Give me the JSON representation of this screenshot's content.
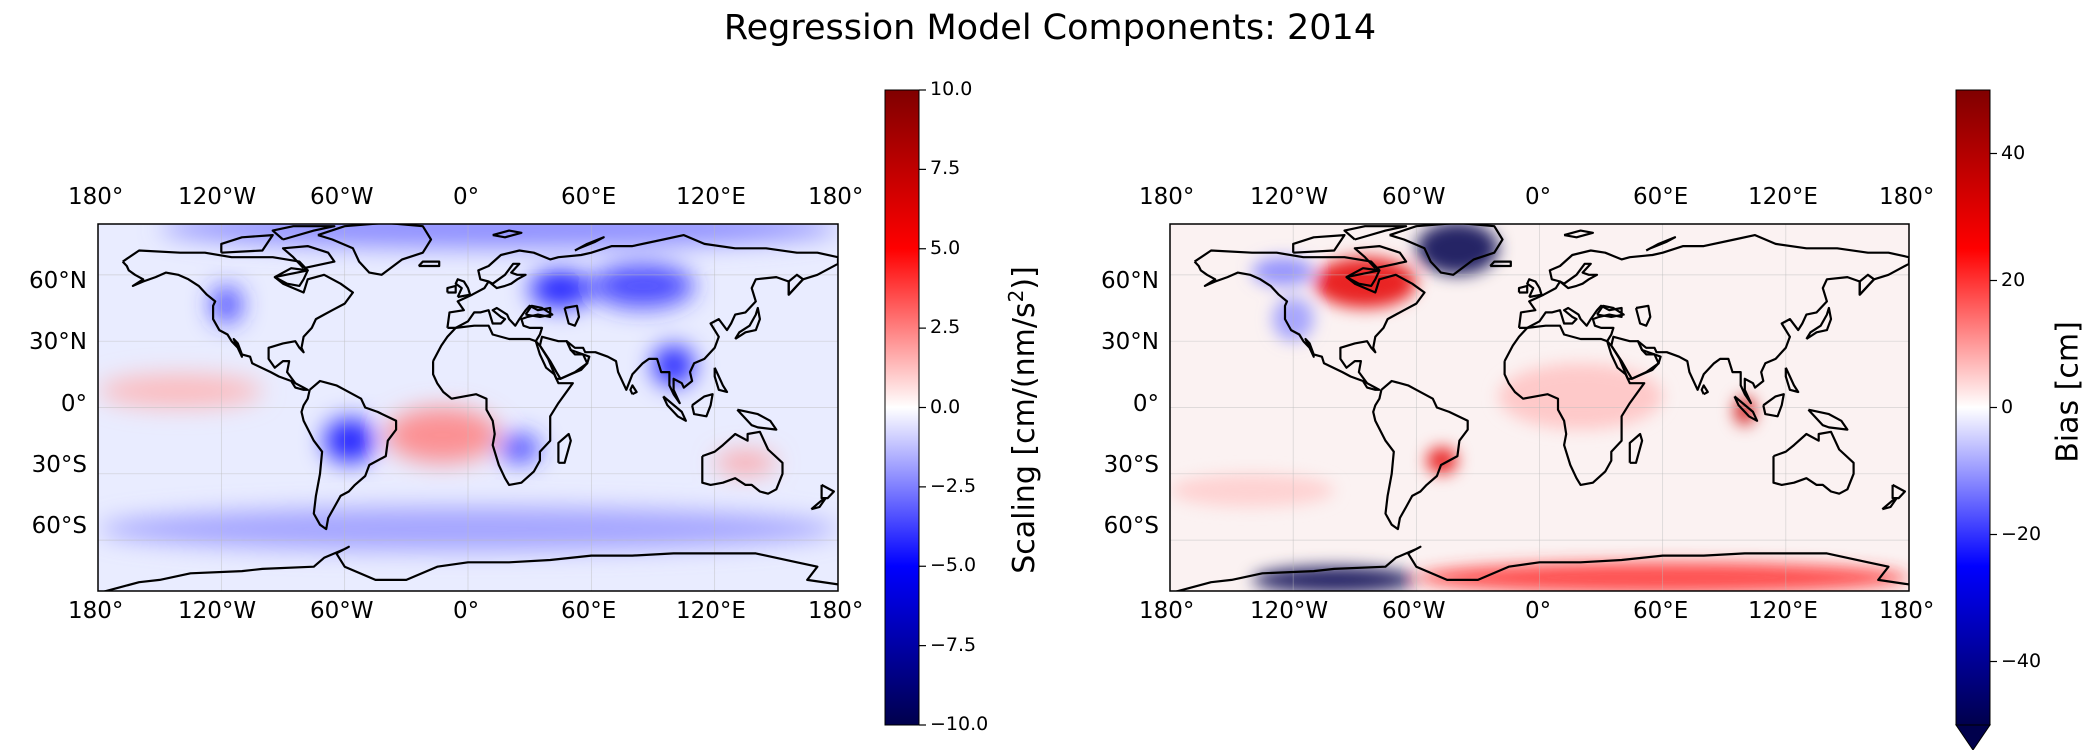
{
  "title": "Regression Model Components: 2014",
  "lon_labels": [
    "180°",
    "120°W",
    "60°W",
    "0°",
    "60°E",
    "120°E",
    "180°"
  ],
  "lat_labels": [
    "60°N",
    "30°N",
    "0°",
    "30°S",
    "60°S"
  ],
  "panels": [
    {
      "colorbar_label": "Scaling [cm/(nm/s",
      "colorbar_label_sup": "2",
      "colorbar_label_end": ")]",
      "colorbar_ticks": [
        "10.0",
        "7.5",
        "5.0",
        "2.5",
        "0.0",
        "−2.5",
        "−5.0",
        "−7.5",
        "−10.0"
      ],
      "colormap": "seismic",
      "extend": "neither"
    },
    {
      "colorbar_label": "Bias [cm]",
      "colorbar_ticks": [
        "40",
        "20",
        "0",
        "−20",
        "−40"
      ],
      "colormap": "seismic",
      "extend": "min"
    }
  ],
  "chart_data": [
    {
      "type": "heatmap",
      "projection": "PlateCarree",
      "variable": "Scaling",
      "units": "cm/(nm/s^2)",
      "xlim": [
        -180,
        180
      ],
      "ylim": [
        -90,
        90
      ],
      "clim": [
        -10,
        10
      ],
      "grid": true,
      "x_ticks": [
        -180,
        -120,
        -60,
        0,
        60,
        120,
        180
      ],
      "y_ticks": [
        60,
        30,
        0,
        -30,
        -60
      ],
      "colorbar_ticks": [
        10,
        7.5,
        5,
        2.5,
        0,
        -2.5,
        -5,
        -7.5,
        -10
      ],
      "regions": [
        {
          "lon": [
            -150,
            180
          ],
          "lat": [
            72,
            90
          ],
          "value": -2.5
        },
        {
          "lon": [
            60,
            110
          ],
          "lat": [
            45,
            65
          ],
          "value": -4
        },
        {
          "lon": [
            30,
            60
          ],
          "lat": [
            45,
            62
          ],
          "value": -5
        },
        {
          "lon": [
            -125,
            -110
          ],
          "lat": [
            38,
            55
          ],
          "value": -4
        },
        {
          "lon": [
            -70,
            -45
          ],
          "lat": [
            -25,
            -5
          ],
          "value": -5
        },
        {
          "lon": [
            -40,
            15
          ],
          "lat": [
            -25,
            0
          ],
          "value": 2.5
        },
        {
          "lon": [
            -180,
            -100
          ],
          "lat": [
            0,
            15
          ],
          "value": 1.5
        },
        {
          "lon": [
            15,
            35
          ],
          "lat": [
            -25,
            -12
          ],
          "value": -4
        },
        {
          "lon": [
            90,
            110
          ],
          "lat": [
            10,
            28
          ],
          "value": -5
        },
        {
          "lon": [
            120,
            150
          ],
          "lat": [
            -30,
            -20
          ],
          "value": 2
        },
        {
          "lon": [
            -180,
            180
          ],
          "lat": [
            -65,
            -45
          ],
          "value": -2
        }
      ]
    },
    {
      "type": "heatmap",
      "projection": "PlateCarree",
      "variable": "Bias",
      "units": "cm",
      "xlim": [
        -180,
        180
      ],
      "ylim": [
        -90,
        90
      ],
      "clim": [
        -50,
        50
      ],
      "grid": true,
      "x_ticks": [
        -180,
        -120,
        -60,
        0,
        60,
        120,
        180
      ],
      "y_ticks": [
        60,
        30,
        0,
        -30,
        -60
      ],
      "colorbar_ticks": [
        40,
        20,
        0,
        -20,
        -40
      ],
      "regions": [
        {
          "lon": [
            -60,
            -20
          ],
          "lat": [
            60,
            84
          ],
          "value": -50
        },
        {
          "lon": [
            -140,
            -60
          ],
          "lat": [
            -84,
            -72
          ],
          "value": -50
        },
        {
          "lon": [
            -110,
            -60
          ],
          "lat": [
            45,
            68
          ],
          "value": 30
        },
        {
          "lon": [
            -140,
            -110
          ],
          "lat": [
            55,
            68
          ],
          "value": -12
        },
        {
          "lon": [
            -130,
            -110
          ],
          "lat": [
            30,
            50
          ],
          "value": -10
        },
        {
          "lon": [
            -60,
            180
          ],
          "lat": [
            -84,
            -70
          ],
          "value": 20
        },
        {
          "lon": [
            95,
            105
          ],
          "lat": [
            -8,
            5
          ],
          "value": 35
        },
        {
          "lon": [
            -55,
            -40
          ],
          "lat": [
            -30,
            -18
          ],
          "value": 30
        },
        {
          "lon": [
            -180,
            -100
          ],
          "lat": [
            -45,
            -30
          ],
          "value": 5
        },
        {
          "lon": [
            -20,
            60
          ],
          "lat": [
            -10,
            20
          ],
          "value": 6
        }
      ]
    }
  ]
}
